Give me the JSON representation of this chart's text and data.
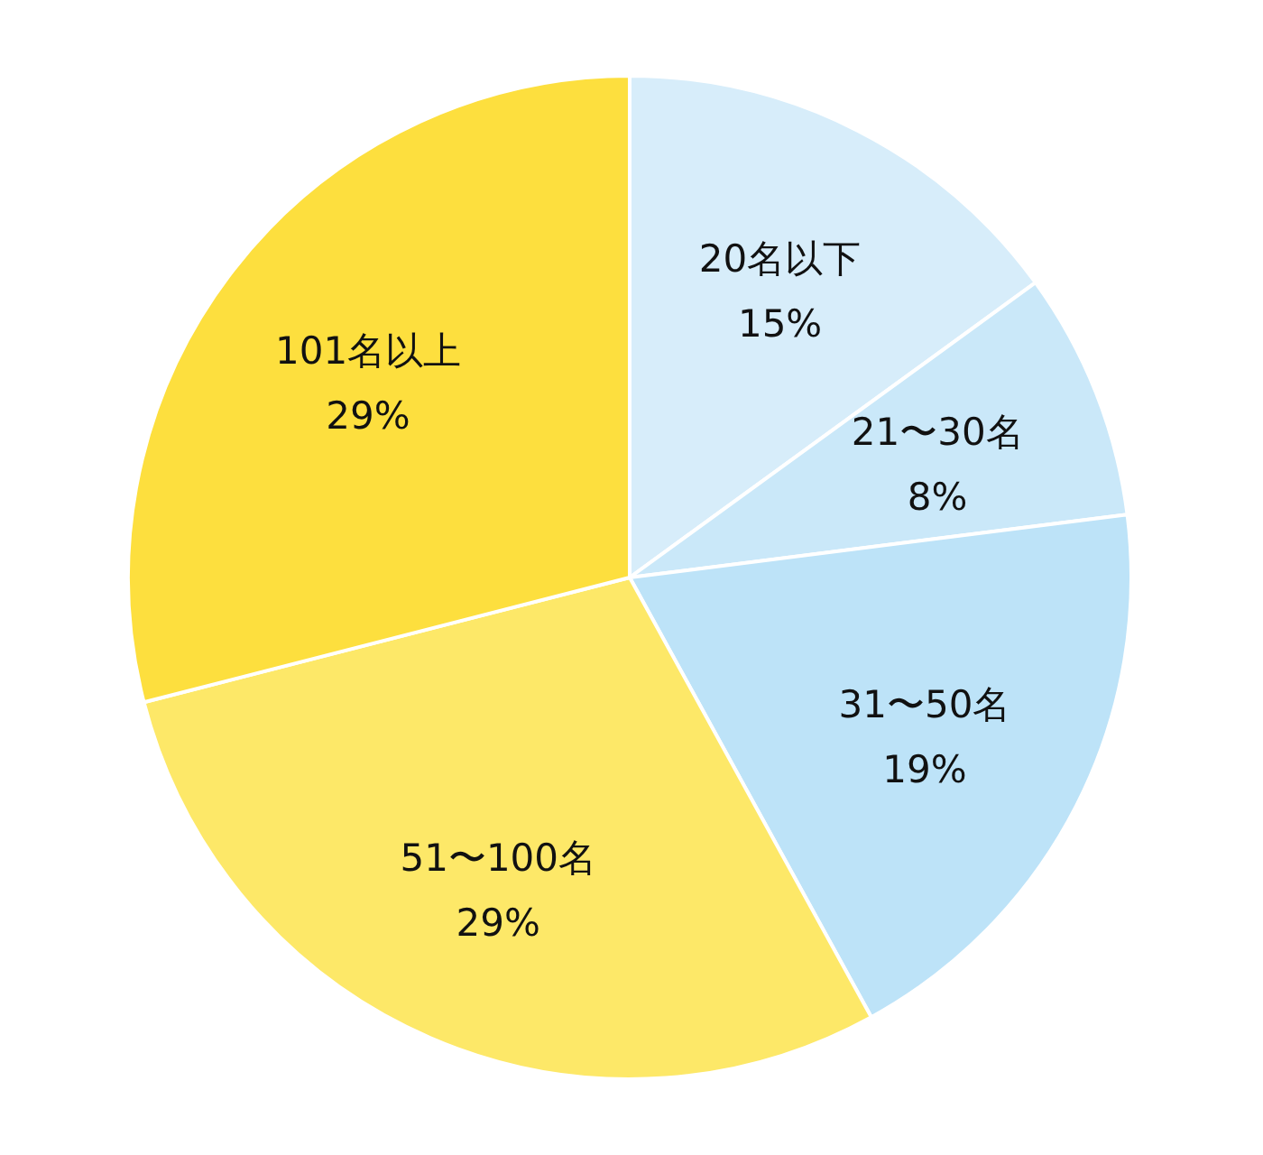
{
  "chart_data": {
    "type": "pie",
    "categories": [
      "20名以下",
      "21〜30名",
      "31〜50名",
      "51〜100名",
      "101名以上"
    ],
    "values": [
      15,
      8,
      19,
      29,
      29
    ],
    "value_labels": [
      "15%",
      "8%",
      "19%",
      "29%",
      "29%"
    ],
    "colors": [
      "#d7edfa",
      "#cae8f9",
      "#bde3f8",
      "#fde868",
      "#fddf3e"
    ]
  }
}
